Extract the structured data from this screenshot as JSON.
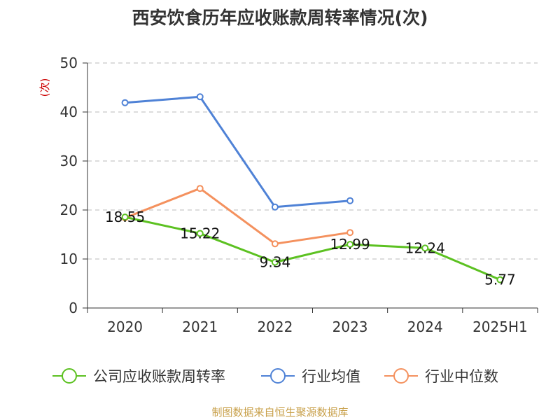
{
  "chart_data": {
    "type": "line",
    "title": "西安饮食历年应收账款周转率情况(次)",
    "ylabel": "(次)",
    "xlabel": "",
    "categories": [
      "2020",
      "2021",
      "2022",
      "2023",
      "2024",
      "2025H1"
    ],
    "ylim": [
      0,
      50
    ],
    "yticks": [
      0,
      10,
      20,
      30,
      40,
      50
    ],
    "grid": true,
    "legend_position": "bottom",
    "series": [
      {
        "name": "公司应收账款周转率",
        "color": "#5cc121",
        "values": [
          18.55,
          15.22,
          9.34,
          12.99,
          12.24,
          5.77
        ],
        "labels": [
          "18.55",
          "15.22",
          "9.34",
          "12.99",
          "12.24",
          "5.77"
        ]
      },
      {
        "name": "行业均值",
        "color": "#4f82d6",
        "values": [
          41.9,
          43.1,
          20.6,
          21.9,
          null,
          null
        ]
      },
      {
        "name": "行业中位数",
        "color": "#f4915e",
        "values": [
          18.4,
          24.4,
          13.1,
          15.4,
          null,
          null
        ]
      }
    ]
  },
  "source": "制图数据来自恒生聚源数据库",
  "colors": {
    "source_text": "#c8a04a",
    "ylabel": "#cc0000",
    "grid": "#bbbbbb",
    "axis": "#333333"
  }
}
